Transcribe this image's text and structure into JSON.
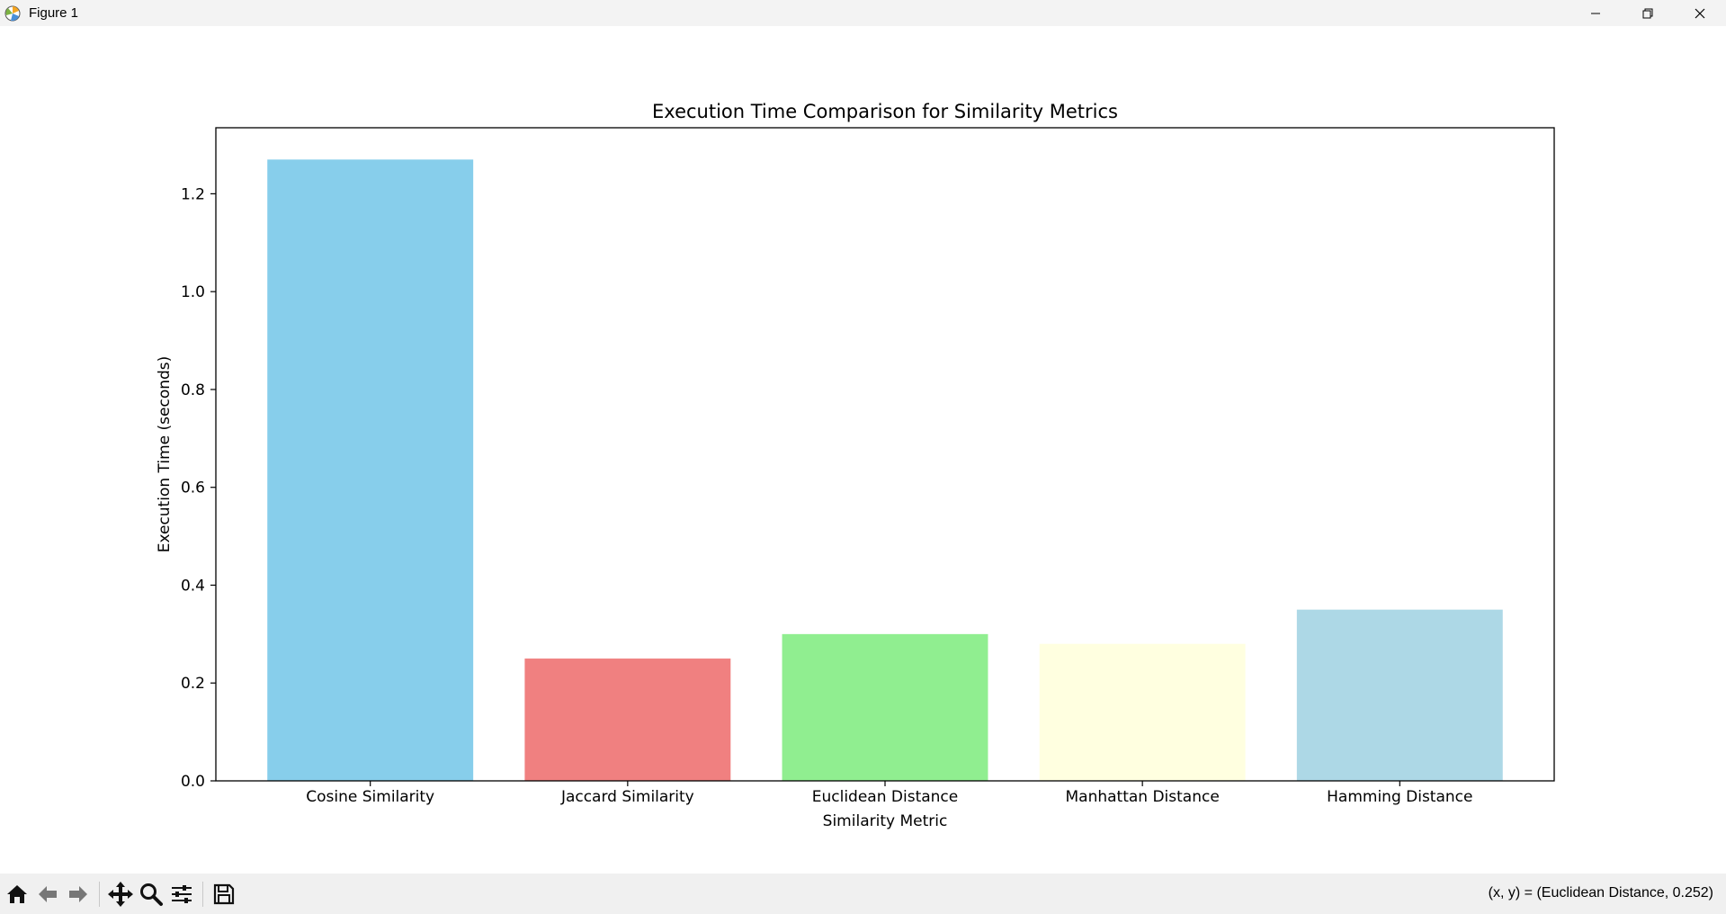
{
  "window": {
    "title": "Figure 1"
  },
  "toolbar": {
    "buttons": [
      "home-icon",
      "back-arrow-icon",
      "forward-arrow-icon",
      "pan-icon",
      "zoom-icon",
      "configure-subplots-icon",
      "save-icon"
    ]
  },
  "status": {
    "coordinates": "(x, y) = (Euclidean Distance, 0.252)"
  },
  "chart_data": {
    "type": "bar",
    "title": "Execution Time Comparison for Similarity Metrics",
    "xlabel": "Similarity Metric",
    "ylabel": "Execution Time (seconds)",
    "categories": [
      "Cosine Similarity",
      "Jaccard Similarity",
      "Euclidean Distance",
      "Manhattan Distance",
      "Hamming Distance"
    ],
    "values": [
      1.27,
      0.25,
      0.3,
      0.28,
      0.35
    ],
    "colors": [
      "#87ceeb",
      "#f08080",
      "#90ee90",
      "#ffffe0",
      "#add8e6"
    ],
    "ylim": [
      0,
      1.335
    ],
    "yticks": [
      0.0,
      0.2,
      0.4,
      0.6,
      0.8,
      1.0,
      1.2
    ],
    "ytick_labels": [
      "0.0",
      "0.2",
      "0.4",
      "0.6",
      "0.8",
      "1.0",
      "1.2"
    ],
    "grid": false,
    "legend": "none"
  }
}
